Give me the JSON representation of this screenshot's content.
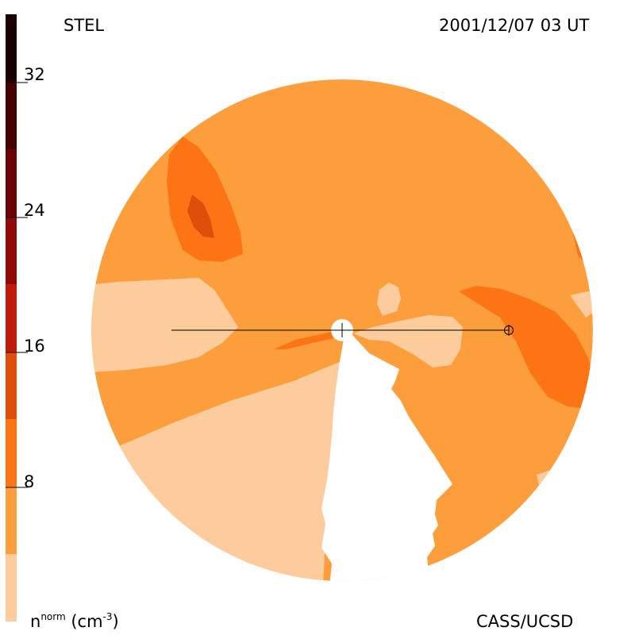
{
  "header": {
    "station": "STEL",
    "timestamp": "2001/12/07 03 UT"
  },
  "footer": {
    "credit": "CASS/UCSD",
    "units": {
      "base": "n",
      "superscript": "norm",
      "unit_open": " (cm",
      "unit_exp": "-3",
      "unit_close": ")"
    }
  },
  "colorbar": {
    "tick_labels": [
      "32",
      "24",
      "16",
      "8"
    ],
    "tick_values": [
      32,
      24,
      16,
      8
    ],
    "range": [
      0,
      36
    ],
    "bands": [
      {
        "from": 0,
        "to": 4,
        "color": "#fdcc9d"
      },
      {
        "from": 4,
        "to": 8,
        "color": "#fd9e3d"
      },
      {
        "from": 8,
        "to": 12,
        "color": "#fd7415"
      },
      {
        "from": 12,
        "to": 16,
        "color": "#e04e0c"
      },
      {
        "from": 16,
        "to": 20,
        "color": "#c01b0b"
      },
      {
        "from": 20,
        "to": 24,
        "color": "#920a07"
      },
      {
        "from": 24,
        "to": 28,
        "color": "#6a0304"
      },
      {
        "from": 28,
        "to": 32,
        "color": "#450201"
      },
      {
        "from": 32,
        "to": 36,
        "color": "#1c0000"
      }
    ]
  },
  "map": {
    "background_color": "#fd9e3d",
    "marker_symbol": "earth-symbol"
  }
}
